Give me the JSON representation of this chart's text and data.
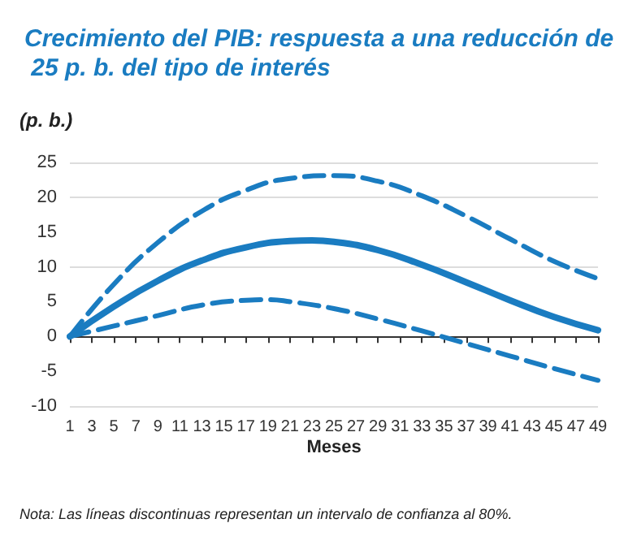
{
  "chart_data": {
    "type": "line",
    "title": "Crecimiento del PIB: respuesta a una reducción de 25 p. b. del tipo de interés",
    "ylabel": "(p. b.)",
    "xlabel": "Meses",
    "annotations": [
      "Nota: Las líneas discontinuas representan un intervalo de confianza al 80%."
    ],
    "xlim": [
      1,
      49
    ],
    "xticks": [
      1,
      3,
      5,
      7,
      9,
      11,
      13,
      15,
      17,
      19,
      21,
      23,
      25,
      27,
      29,
      31,
      33,
      35,
      37,
      39,
      41,
      43,
      45,
      47,
      49
    ],
    "ylim": [
      -10,
      25
    ],
    "yticks": [
      -10,
      -5,
      0,
      5,
      10,
      15,
      20,
      25
    ],
    "grid": "y",
    "marker": "none",
    "series": [
      {
        "color": "#1a7cc1",
        "line_style": "dashed",
        "x": [
          1,
          5,
          9,
          13,
          17,
          21,
          25,
          29,
          33,
          37,
          41,
          45,
          49
        ],
        "values": [
          0,
          7.5,
          13.5,
          18,
          21,
          22.7,
          23.1,
          22.3,
          20.2,
          17.3,
          14,
          10.8,
          8.3
        ]
      },
      {
        "color": "#1a7cc1",
        "line_style": "solid",
        "x": [
          1,
          5,
          9,
          13,
          17,
          21,
          23,
          25,
          29,
          33,
          37,
          41,
          45,
          49
        ],
        "values": [
          0,
          4.3,
          8,
          10.9,
          12.8,
          13.7,
          13.8,
          13.6,
          12.4,
          10.3,
          7.8,
          5.2,
          2.8,
          0.9
        ]
      },
      {
        "color": "#1a7cc1",
        "line_style": "dashed",
        "x": [
          1,
          5,
          9,
          13,
          17,
          19,
          21,
          25,
          29,
          33,
          37,
          41,
          45,
          49
        ],
        "values": [
          0,
          1.5,
          3,
          4.5,
          5.2,
          5.3,
          5,
          4,
          2.5,
          0.8,
          -1,
          -2.8,
          -4.6,
          -6.3
        ]
      }
    ]
  }
}
